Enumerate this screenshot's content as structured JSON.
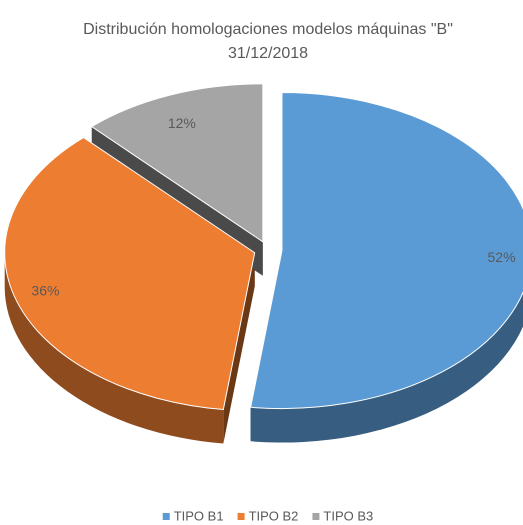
{
  "chart_data": {
    "type": "pie",
    "title": "Distribución homologaciones modelos máquinas \"B\"",
    "subtitle": "31/12/2018",
    "categories": [
      "TIPO B1",
      "TIPO B2",
      "TIPO B3"
    ],
    "values": [
      52,
      36,
      12
    ],
    "value_labels": [
      "52%",
      "36%",
      "12%"
    ],
    "colors": [
      "#5b9bd5",
      "#ed7d31",
      "#a5a5a5"
    ],
    "legend": "bottom"
  }
}
